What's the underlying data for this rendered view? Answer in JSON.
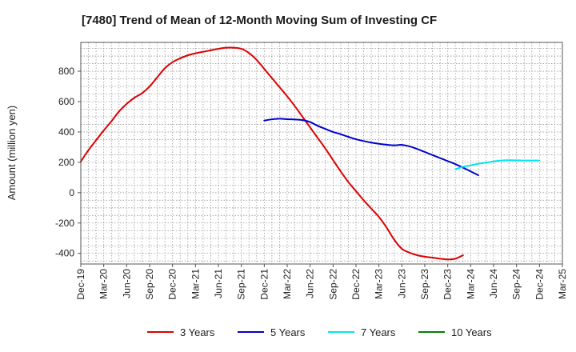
{
  "chart_data": {
    "type": "line",
    "title": "[7480]  Trend of Mean of 12-Month Moving Sum of Investing CF",
    "xlabel": "",
    "ylabel": "Amount (million yen)",
    "ylim": [
      -470,
      990
    ],
    "yticks": [
      -400,
      -200,
      0,
      200,
      400,
      600,
      800
    ],
    "grid": true,
    "legend_position": "bottom",
    "x_tick_labels": [
      "Dec-19",
      "Mar-20",
      "Jun-20",
      "Sep-20",
      "Dec-20",
      "Mar-21",
      "Jun-21",
      "Sep-21",
      "Dec-21",
      "Mar-22",
      "Jun-22",
      "Sep-22",
      "Dec-22",
      "Mar-23",
      "Jun-23",
      "Sep-23",
      "Dec-23",
      "Mar-24",
      "Jun-24",
      "Sep-24",
      "Dec-24",
      "Mar-25"
    ],
    "series": [
      {
        "name": "3 Years",
        "color": "#dd0000",
        "points": [
          [
            0,
            205
          ],
          [
            1,
            280
          ],
          [
            2,
            345
          ],
          [
            3,
            410
          ],
          [
            4,
            470
          ],
          [
            5,
            535
          ],
          [
            6,
            585
          ],
          [
            7,
            625
          ],
          [
            8,
            655
          ],
          [
            9,
            700
          ],
          [
            10,
            760
          ],
          [
            11,
            820
          ],
          [
            12,
            860
          ],
          [
            13,
            885
          ],
          [
            14,
            905
          ],
          [
            15,
            918
          ],
          [
            16,
            928
          ],
          [
            17,
            938
          ],
          [
            18,
            948
          ],
          [
            19,
            955
          ],
          [
            20,
            955
          ],
          [
            21,
            948
          ],
          [
            22,
            920
          ],
          [
            23,
            875
          ],
          [
            24,
            815
          ],
          [
            25,
            755
          ],
          [
            26,
            695
          ],
          [
            27,
            635
          ],
          [
            28,
            570
          ],
          [
            29,
            500
          ],
          [
            30,
            430
          ],
          [
            31,
            360
          ],
          [
            32,
            290
          ],
          [
            33,
            215
          ],
          [
            34,
            140
          ],
          [
            35,
            70
          ],
          [
            36,
            10
          ],
          [
            37,
            -50
          ],
          [
            38,
            -105
          ],
          [
            39,
            -160
          ],
          [
            40,
            -230
          ],
          [
            41,
            -310
          ],
          [
            42,
            -370
          ],
          [
            43,
            -395
          ],
          [
            44,
            -412
          ],
          [
            45,
            -422
          ],
          [
            46,
            -428
          ],
          [
            47,
            -435
          ],
          [
            48,
            -440
          ],
          [
            49,
            -435
          ],
          [
            50,
            -412
          ]
        ]
      },
      {
        "name": "5 Years",
        "color": "#0000cc",
        "points": [
          [
            24,
            475
          ],
          [
            25,
            483
          ],
          [
            26,
            487
          ],
          [
            27,
            484
          ],
          [
            28,
            482
          ],
          [
            29,
            478
          ],
          [
            30,
            465
          ],
          [
            31,
            440
          ],
          [
            32,
            420
          ],
          [
            33,
            400
          ],
          [
            34,
            385
          ],
          [
            35,
            368
          ],
          [
            36,
            352
          ],
          [
            37,
            340
          ],
          [
            38,
            330
          ],
          [
            39,
            322
          ],
          [
            40,
            316
          ],
          [
            41,
            312
          ],
          [
            42,
            315
          ],
          [
            43,
            305
          ],
          [
            44,
            288
          ],
          [
            45,
            268
          ],
          [
            46,
            248
          ],
          [
            47,
            228
          ],
          [
            48,
            208
          ],
          [
            49,
            188
          ],
          [
            50,
            165
          ],
          [
            51,
            140
          ],
          [
            52,
            115
          ]
        ]
      },
      {
        "name": "7 Years",
        "color": "#00e5ee",
        "points": [
          [
            49,
            155
          ],
          [
            50,
            170
          ],
          [
            51,
            180
          ],
          [
            52,
            190
          ],
          [
            53,
            198
          ],
          [
            54,
            206
          ],
          [
            55,
            212
          ],
          [
            56,
            214
          ],
          [
            57,
            213
          ],
          [
            58,
            212
          ],
          [
            59,
            212
          ],
          [
            60,
            212
          ]
        ]
      },
      {
        "name": "10 Years",
        "color": "#008000",
        "points": []
      }
    ]
  }
}
